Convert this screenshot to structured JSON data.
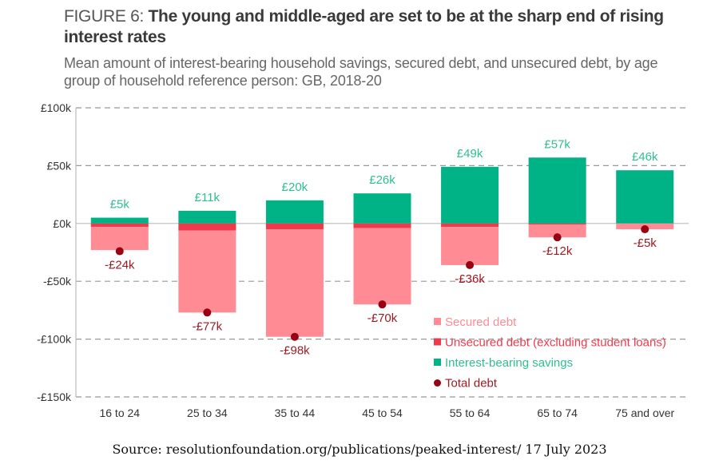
{
  "header": {
    "figure_prefix": "FIGURE 6: ",
    "title": "The young and middle-aged are set to be at the sharp end of rising interest rates",
    "subtitle": "Mean amount of interest-bearing household savings, secured debt, and unsecured debt, by age group of household reference person: GB, 2018-20"
  },
  "source": "Source: resolutionfoundation.org/publications/peaked-interest/ 17 July 2023",
  "colors": {
    "secured": "#ff8c94",
    "unsecured": "#f03a4c",
    "savings": "#00b386",
    "total": "#990011",
    "savings_label": "#2fbf91",
    "total_label": "#9b1b22",
    "grid": "#999999",
    "axis": "#bbbbbb",
    "tick_text": "#333333"
  },
  "chart_data": {
    "type": "bar",
    "stacked": true,
    "title": "The young and middle-aged are set to be at the sharp end of rising interest rates",
    "xlabel": "",
    "ylabel": "",
    "categories": [
      "16 to 24",
      "25 to 34",
      "35 to 44",
      "45 to 54",
      "55 to 64",
      "65 to 74",
      "75 and over"
    ],
    "ylim": [
      -150,
      100
    ],
    "yticks": [
      100,
      50,
      0,
      -50,
      -100,
      -150
    ],
    "ytick_labels": [
      "£100k",
      "£50k",
      "£0k",
      "-£50k",
      "-£100k",
      "-£150k"
    ],
    "grid": "horizontal-dashed",
    "units": "£ thousands",
    "series": [
      {
        "name": "Secured debt",
        "key": "secured",
        "values": [
          -20,
          -71,
          -93,
          -66,
          -33,
          -11,
          -5
        ]
      },
      {
        "name": "Unsecured debt (excluding student loans)",
        "key": "unsecured",
        "values": [
          -3,
          -6,
          -5,
          -4,
          -3,
          -1,
          0
        ]
      },
      {
        "name": "Interest-bearing savings",
        "key": "savings",
        "values": [
          5,
          11,
          20,
          26,
          49,
          57,
          46
        ]
      },
      {
        "name": "Total debt",
        "key": "total",
        "type": "point",
        "values": [
          -24,
          -77,
          -98,
          -70,
          -36,
          -12,
          -5
        ]
      }
    ],
    "savings_labels": [
      "£5k",
      "£11k",
      "£20k",
      "£26k",
      "£49k",
      "£57k",
      "£46k"
    ],
    "total_labels": [
      "-£24k",
      "-£77k",
      "-£98k",
      "-£70k",
      "-£36k",
      "-£12k",
      "-£5k"
    ],
    "legend": {
      "placement": "bottom-right",
      "items": [
        {
          "label": "Secured debt",
          "marker": "square",
          "key": "secured"
        },
        {
          "label": "Unsecured debt (excluding student loans)",
          "marker": "square",
          "key": "unsecured"
        },
        {
          "label": "Interest-bearing savings",
          "marker": "square",
          "key": "savings"
        },
        {
          "label": "Total debt",
          "marker": "circle",
          "key": "total"
        }
      ]
    }
  }
}
